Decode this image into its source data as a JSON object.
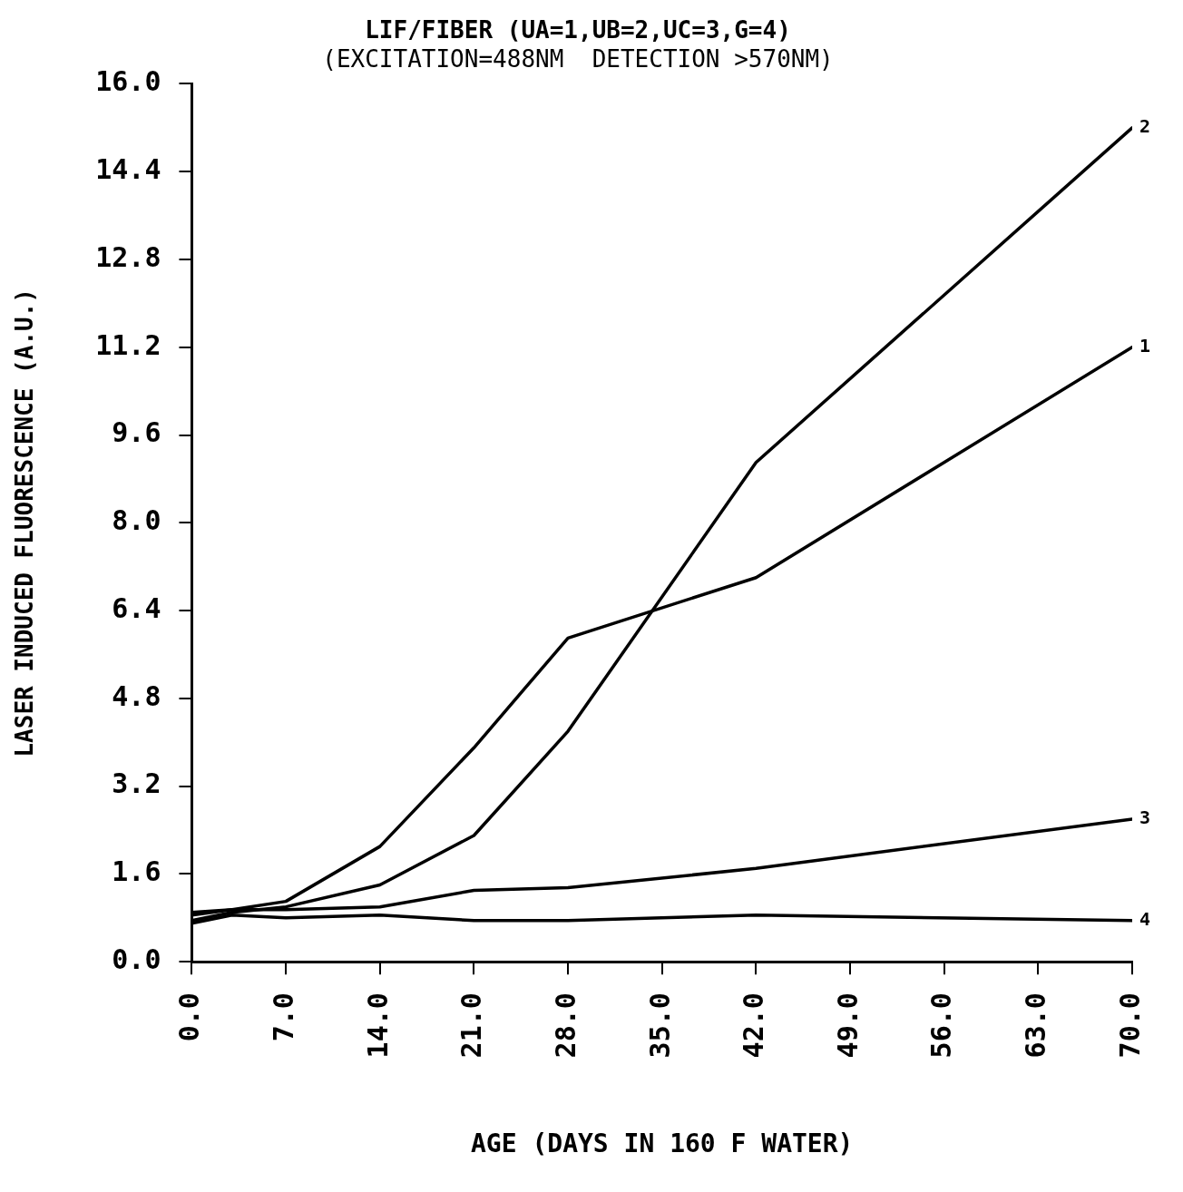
{
  "chart_data": {
    "type": "line",
    "title": "LIF/FIBER (UA=1,UB=2,UC=3,G=4)",
    "subtitle": "(EXCITATION=488NM  DETECTION >570NM)",
    "xlabel": "AGE (DAYS IN 160 F WATER)",
    "ylabel": "LASER INDUCED FLUORESCENCE (A.U.)",
    "x": [
      0,
      3,
      7,
      14,
      21,
      28,
      42,
      70
    ],
    "series": [
      {
        "name": "1",
        "color": "#000000",
        "values": [
          0.85,
          0.95,
          1.1,
          2.1,
          3.9,
          5.9,
          7.0,
          11.2
        ]
      },
      {
        "name": "2",
        "color": "#000000",
        "values": [
          0.75,
          0.9,
          1.0,
          1.4,
          2.3,
          4.2,
          9.1,
          15.2
        ]
      },
      {
        "name": "3",
        "color": "#000000",
        "values": [
          0.9,
          0.95,
          0.95,
          1.0,
          1.3,
          1.35,
          1.7,
          2.6
        ]
      },
      {
        "name": "4",
        "color": "#000000",
        "values": [
          0.7,
          0.85,
          0.8,
          0.85,
          0.75,
          0.75,
          0.85,
          0.75
        ]
      }
    ],
    "xlim": [
      0,
      70
    ],
    "xticks": [
      {
        "value": 0,
        "label": "0.0"
      },
      {
        "value": 7,
        "label": "7.0"
      },
      {
        "value": 14,
        "label": "14.0"
      },
      {
        "value": 21,
        "label": "21.0"
      },
      {
        "value": 28,
        "label": "28.0"
      },
      {
        "value": 35,
        "label": "35.0"
      },
      {
        "value": 42,
        "label": "42.0"
      },
      {
        "value": 49,
        "label": "49.0"
      },
      {
        "value": 56,
        "label": "56.0"
      },
      {
        "value": 63,
        "label": "63.0"
      },
      {
        "value": 70,
        "label": "70.0"
      }
    ],
    "ylim": [
      0,
      16
    ],
    "yticks": [
      {
        "value": 0,
        "label": "0.0"
      },
      1.6,
      3.2,
      4.8,
      6.4,
      {
        "value": 8,
        "label": "8.0"
      },
      9.6,
      11.2,
      12.8,
      14.4,
      {
        "value": 16,
        "label": "16.0"
      }
    ],
    "grid": false,
    "legend": false,
    "marker": "none",
    "line_style": "solid"
  }
}
